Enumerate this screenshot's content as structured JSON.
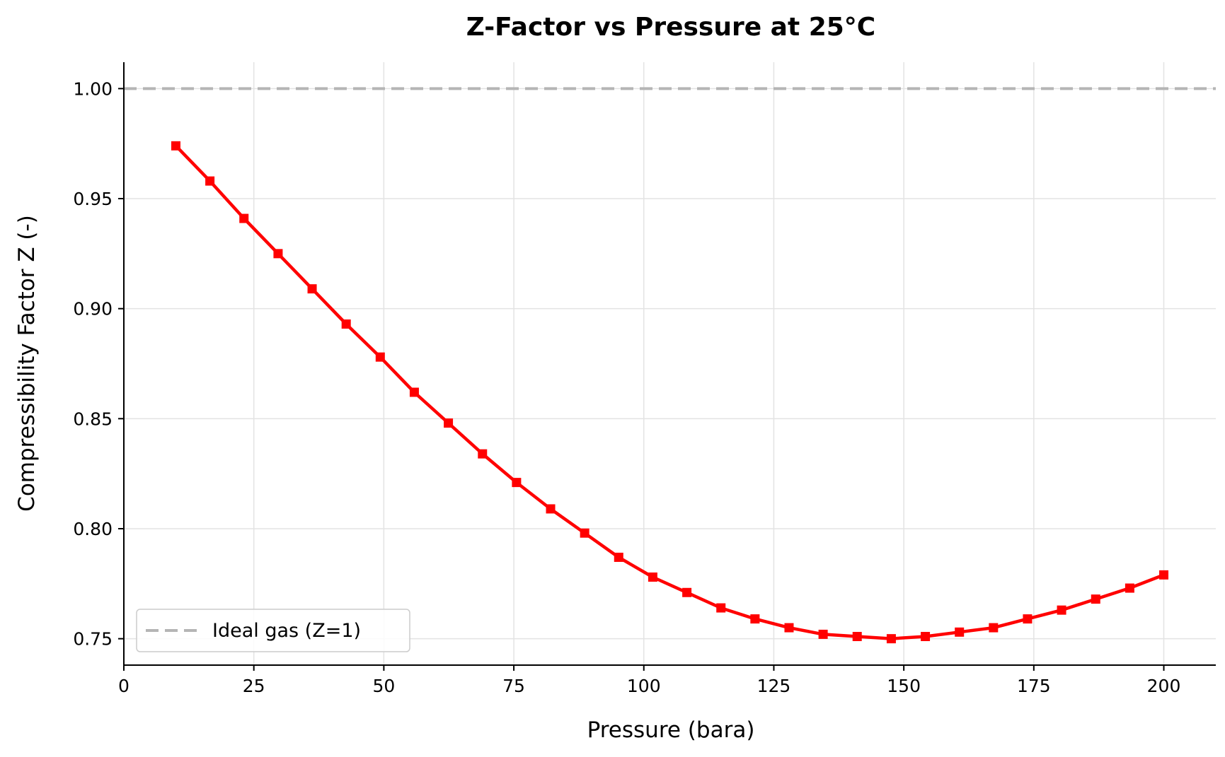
{
  "chart_data": {
    "type": "line",
    "title": "Z-Factor vs Pressure at 25°C",
    "xlabel": "Pressure (bara)",
    "ylabel": "Compressibility Factor Z (-)",
    "xlim": [
      0,
      210
    ],
    "ylim": [
      0.738,
      1.012
    ],
    "xticks": [
      0,
      25,
      50,
      75,
      100,
      125,
      150,
      175,
      200
    ],
    "xtick_labels": [
      "0",
      "25",
      "50",
      "75",
      "100",
      "125",
      "150",
      "175",
      "200"
    ],
    "yticks": [
      0.75,
      0.8,
      0.85,
      0.9,
      0.95,
      1.0
    ],
    "ytick_labels": [
      "0.75",
      "0.80",
      "0.85",
      "0.90",
      "0.95",
      "1.00"
    ],
    "grid": true,
    "legend_position": "lower-left",
    "series": [
      {
        "color": "#ff0000",
        "marker": "square",
        "x": [
          10.0,
          16.55,
          23.1,
          29.66,
          36.21,
          42.76,
          49.31,
          55.86,
          62.41,
          68.97,
          75.52,
          82.07,
          88.62,
          95.17,
          101.72,
          108.28,
          114.83,
          121.38,
          127.93,
          134.48,
          141.03,
          147.59,
          154.14,
          160.69,
          167.24,
          173.79,
          180.34,
          186.9,
          193.45,
          200.0
        ],
        "values": [
          0.974,
          0.958,
          0.941,
          0.925,
          0.909,
          0.893,
          0.878,
          0.862,
          0.848,
          0.834,
          0.821,
          0.809,
          0.798,
          0.787,
          0.778,
          0.771,
          0.764,
          0.759,
          0.755,
          0.752,
          0.751,
          0.75,
          0.751,
          0.753,
          0.755,
          0.759,
          0.763,
          0.768,
          0.773,
          0.779
        ]
      }
    ],
    "reference_lines": [
      {
        "name": "Ideal gas (Z=1)",
        "y": 1.0,
        "color": "#b5b5b5",
        "style": "dashed"
      }
    ]
  }
}
